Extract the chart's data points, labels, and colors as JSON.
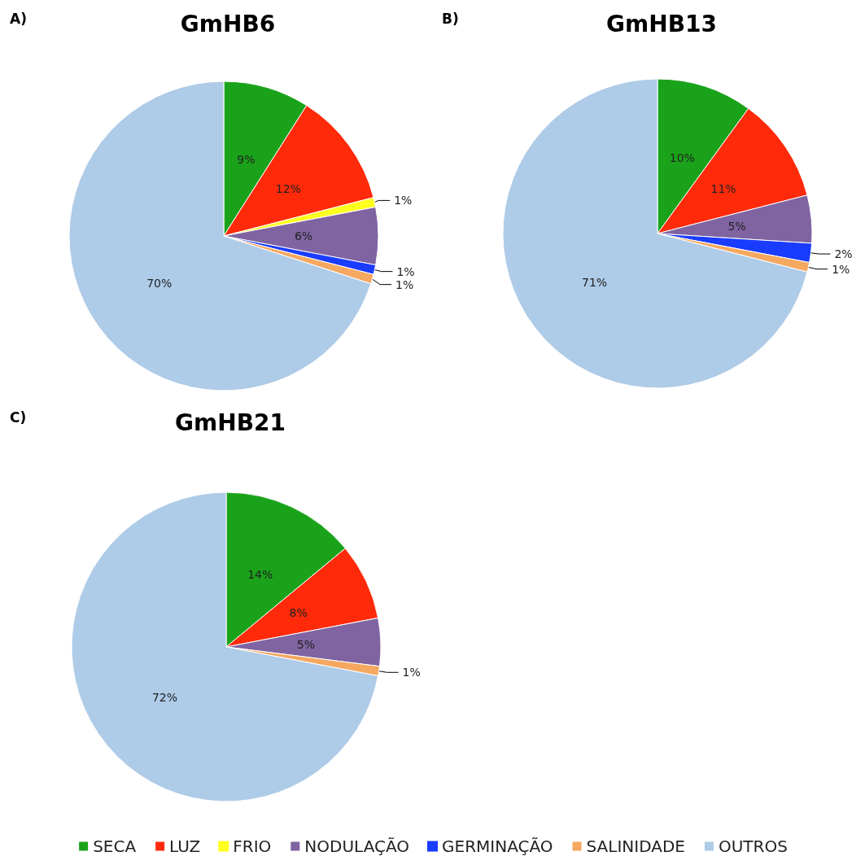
{
  "chart_data": [
    {
      "type": "pie",
      "title": "GmHB6",
      "annotations": [
        "A)"
      ],
      "categories": [
        null,
        null,
        null,
        null,
        null,
        null,
        null
      ],
      "values": [
        9,
        12,
        1,
        6,
        1,
        1,
        70
      ],
      "colors": [
        "#1aa31a",
        "#ff2a0a",
        "#ffff20",
        "#8064a2",
        "#1a3cff",
        "#f5a860",
        "#aecbe8"
      ],
      "value_labels": [
        "9%",
        "12%",
        "1%",
        "6%",
        "1%",
        "1%",
        "70%"
      ]
    },
    {
      "type": "pie",
      "title": "GmHB13",
      "annotations": [
        "B)"
      ],
      "categories": [
        null,
        null,
        null,
        null,
        null,
        null
      ],
      "values": [
        10,
        11,
        5,
        2,
        1,
        71
      ],
      "colors": [
        "#1aa31a",
        "#ff2a0a",
        "#8064a2",
        "#1a3cff",
        "#f5a860",
        "#aecbe8"
      ],
      "value_labels": [
        "10%",
        "11%",
        "5%",
        "2%",
        "1%",
        "71%"
      ]
    },
    {
      "type": "pie",
      "title": "GmHB21",
      "annotations": [
        "C)"
      ],
      "categories": [
        "SECA",
        "LUZ",
        "FRIO",
        "NODULAÇÃO",
        "GERMINAÇÃO",
        "SALINIDADE",
        "OUTROS"
      ],
      "values": [
        14,
        8,
        null,
        5,
        null,
        1,
        72
      ],
      "colors": [
        "#1aa31a",
        "#ff2a0a",
        "#ffff20",
        "#8064a2",
        "#1a3cff",
        "#f5a860",
        "#aecbe8"
      ],
      "value_labels": [
        "14%",
        "8%",
        null,
        "5%",
        null,
        "1%",
        "72%"
      ],
      "legend": "bottom"
    }
  ]
}
